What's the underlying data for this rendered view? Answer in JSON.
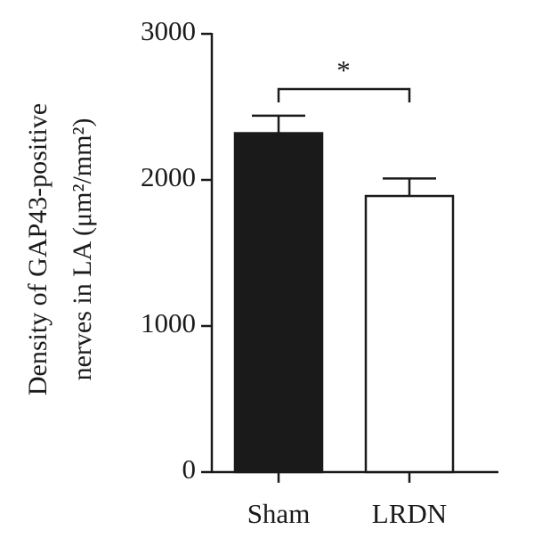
{
  "chart_data": {
    "type": "bar",
    "ylabel": [
      "Density of GAP43-positive",
      "nerves in LA (μm²/mm²)"
    ],
    "categories": [
      "Sham",
      "LRDN"
    ],
    "values": [
      2320,
      1890
    ],
    "errors": [
      120,
      120
    ],
    "colors": [
      "#1a1a1a",
      "#ffffff"
    ],
    "ylim": [
      0,
      3000
    ],
    "yticks": [
      0,
      1000,
      2000,
      3000
    ],
    "annotations": [
      "*"
    ]
  }
}
